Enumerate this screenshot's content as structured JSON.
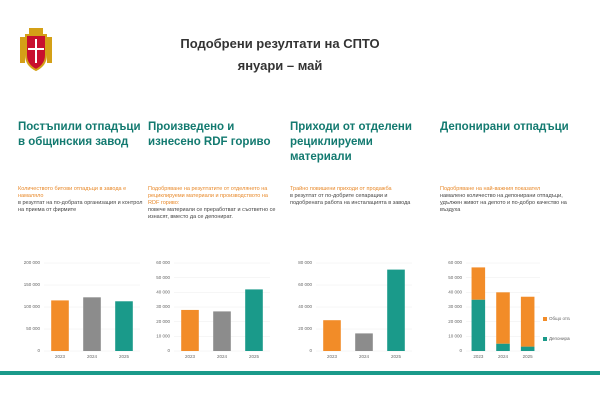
{
  "header": {
    "title": "Подобрени резултати на СПТО",
    "subtitle": "януари – май"
  },
  "chart_data": [
    {
      "type": "bar",
      "title": "Постъпили отпадъци в общинския завод",
      "note_highlight": "Количеството битови отпадъци в завода е намаляло",
      "note": "в резултат на по-добрата организация и контрол на приема от фирмите",
      "categories": [
        "2023",
        "2024",
        "2025"
      ],
      "values": [
        115000,
        122000,
        113000
      ],
      "colors": [
        "#f28c28",
        "#8c8c8c",
        "#1a9a8a"
      ],
      "ylim": [
        0,
        200000
      ],
      "yticks": [
        0,
        {
          "value": 50000,
          "label": "50 000"
        },
        {
          "value": 100000,
          "label": "100 000"
        },
        {
          "value": 150000,
          "label": "150 000"
        },
        {
          "value": 200000,
          "label": "200 000"
        }
      ]
    },
    {
      "type": "bar",
      "title": "Произведено и изнесено RDF гориво",
      "note_highlight": "Подобряване на резултатите от отделянето на рециклируеми материали и производството на RDF гориво:",
      "note": "повече материали се преработват и съответно се изнасят, вместо да се депонират.",
      "categories": [
        "2023",
        "2024",
        "2025"
      ],
      "values": [
        28000,
        27000,
        42000
      ],
      "colors": [
        "#f28c28",
        "#8c8c8c",
        "#1a9a8a"
      ],
      "ylim": [
        0,
        60000
      ],
      "yticks": [
        0,
        {
          "value": 10000,
          "label": "10 000"
        },
        {
          "value": 20000,
          "label": "20 000"
        },
        {
          "value": 30000,
          "label": "30 000"
        },
        {
          "value": 40000,
          "label": "40 000"
        },
        {
          "value": 50000,
          "label": "50 000"
        },
        {
          "value": 60000,
          "label": "60 000"
        }
      ]
    },
    {
      "type": "bar",
      "title": "Приходи от отделени рециклируеми материали",
      "note_highlight": "Трайно повишени приходи от продажба",
      "note": "в резултат от по-добрите сепарации и подобрената работа на инсталацията в завода",
      "categories": [
        "2023",
        "2024",
        "2025"
      ],
      "values": [
        28000,
        16000,
        74000
      ],
      "colors": [
        "#f28c28",
        "#8c8c8c",
        "#1a9a8a"
      ],
      "ylim": [
        0,
        80000
      ],
      "yticks": [
        0,
        {
          "value": 20000,
          "label": "20 000"
        },
        {
          "value": 40000,
          "label": "40 000"
        },
        {
          "value": 60000,
          "label": "60 000"
        },
        {
          "value": 80000,
          "label": "80 000"
        }
      ]
    },
    {
      "type": "stacked_bar",
      "title": "Депонирани отпадъци",
      "note_highlight": "Подобряване на най-важния показател",
      "note": "намалено количество на депонирани отпадъци, удължен живот на депото и по-добро качество на въздуха",
      "categories": [
        "2023",
        "2024",
        "2025"
      ],
      "series": [
        {
          "name": "Депонирани отпадъци",
          "color": "#1a9a8a",
          "values": [
            35000,
            5000,
            3000
          ]
        },
        {
          "name": "Общо отпадъци",
          "color": "#f28c28",
          "values": [
            22000,
            35000,
            34000
          ]
        }
      ],
      "ylim": [
        0,
        60000
      ],
      "yticks": [
        0,
        {
          "value": 10000,
          "label": "10 000"
        },
        {
          "value": 20000,
          "label": "20 000"
        },
        {
          "value": 30000,
          "label": "30 000"
        },
        {
          "value": 40000,
          "label": "40 000"
        },
        {
          "value": 50000,
          "label": "50 000"
        },
        {
          "value": 60000,
          "label": "60 000"
        }
      ]
    }
  ]
}
